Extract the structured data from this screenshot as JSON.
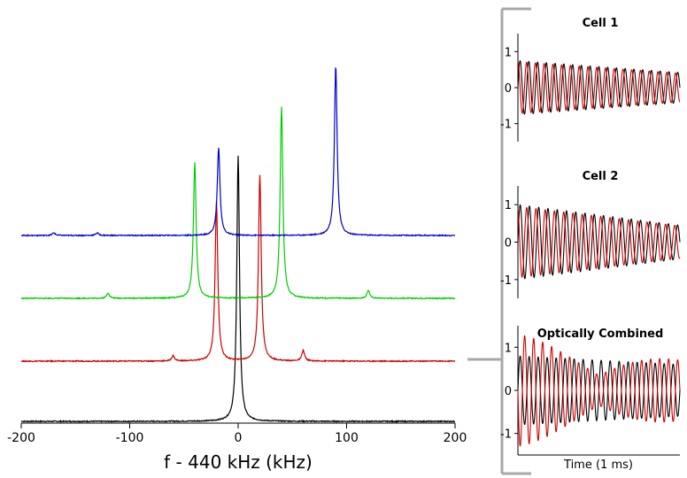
{
  "chart_data": [
    {
      "type": "line",
      "title": "",
      "xlabel": "f - 440 kHz (kHz)",
      "ylabel": "",
      "xlim": [
        -200,
        200
      ],
      "xticks": [
        -200,
        -100,
        0,
        100,
        200
      ],
      "series": [
        {
          "name": "black",
          "color": "#000000",
          "peaks": [
            {
              "x": 0,
              "height": 1.0,
              "width": 1.5
            }
          ],
          "sidebands": []
        },
        {
          "name": "red",
          "color": "#cc0000",
          "peaks": [
            {
              "x": -20,
              "height": 0.6,
              "width": 1.5
            },
            {
              "x": 20,
              "height": 0.7,
              "width": 1.5
            }
          ],
          "sidebands": [
            {
              "x": -60,
              "height": 0.02
            },
            {
              "x": 60,
              "height": 0.04
            }
          ]
        },
        {
          "name": "green",
          "color": "#00cc00",
          "peaks": [
            {
              "x": -40,
              "height": 0.51,
              "width": 1.5
            },
            {
              "x": 40,
              "height": 0.72,
              "width": 1.5
            }
          ],
          "sidebands": [
            {
              "x": -120,
              "height": 0.02
            },
            {
              "x": 120,
              "height": 0.03
            }
          ]
        },
        {
          "name": "blue",
          "color": "#0000cc",
          "peaks": [
            {
              "x": -18,
              "height": 0.33,
              "width": 1.5
            },
            {
              "x": 90,
              "height": 0.64,
              "width": 1.5
            }
          ],
          "sidebands": [
            {
              "x": -170,
              "height": 0.01
            },
            {
              "x": -130,
              "height": 0.01
            }
          ]
        }
      ]
    },
    {
      "type": "line",
      "title": "Cell 1",
      "ylim": [
        -1.5,
        1.5
      ],
      "yticks": [
        -1,
        0,
        1
      ],
      "series": [
        {
          "name": "black",
          "color": "#000000",
          "frequency_cycles": 18.5,
          "amplitude_start": 0.75,
          "amplitude_end": 0.42,
          "phase": 0.0
        },
        {
          "name": "red",
          "color": "#cc0000",
          "frequency_cycles": 18.5,
          "amplitude_start": 0.72,
          "amplitude_end": 0.4,
          "phase": 0.25
        }
      ]
    },
    {
      "type": "line",
      "title": "Cell 2",
      "ylim": [
        -1.5,
        1.5
      ],
      "yticks": [
        -1,
        0,
        1
      ],
      "series": [
        {
          "name": "black",
          "color": "#000000",
          "frequency_cycles": 17.5,
          "amplitude_start": 1.0,
          "amplitude_end": 0.45,
          "phase": 0.0
        },
        {
          "name": "red",
          "color": "#cc0000",
          "frequency_cycles": 17.5,
          "amplitude_start": 0.95,
          "amplitude_end": 0.43,
          "phase": 0.3
        }
      ]
    },
    {
      "type": "line",
      "title": "Optically Combined",
      "xlabel": "Time (1 ms)",
      "ylim": [
        -1.5,
        1.5
      ],
      "yticks": [
        -1,
        0,
        1
      ],
      "series": [
        {
          "name": "black",
          "color": "#000000",
          "frequency_cycles": 18,
          "amplitude_start": 0.8,
          "amplitude_end": 0.6,
          "beat_cycles": 0,
          "phase": 0.0
        },
        {
          "name": "red",
          "color": "#cc0000",
          "frequency_cycles": 18,
          "amplitude_start": 1.3,
          "amplitude_end": 0.7,
          "beat_cycles": 1.0,
          "phase": 0.5
        }
      ]
    }
  ]
}
